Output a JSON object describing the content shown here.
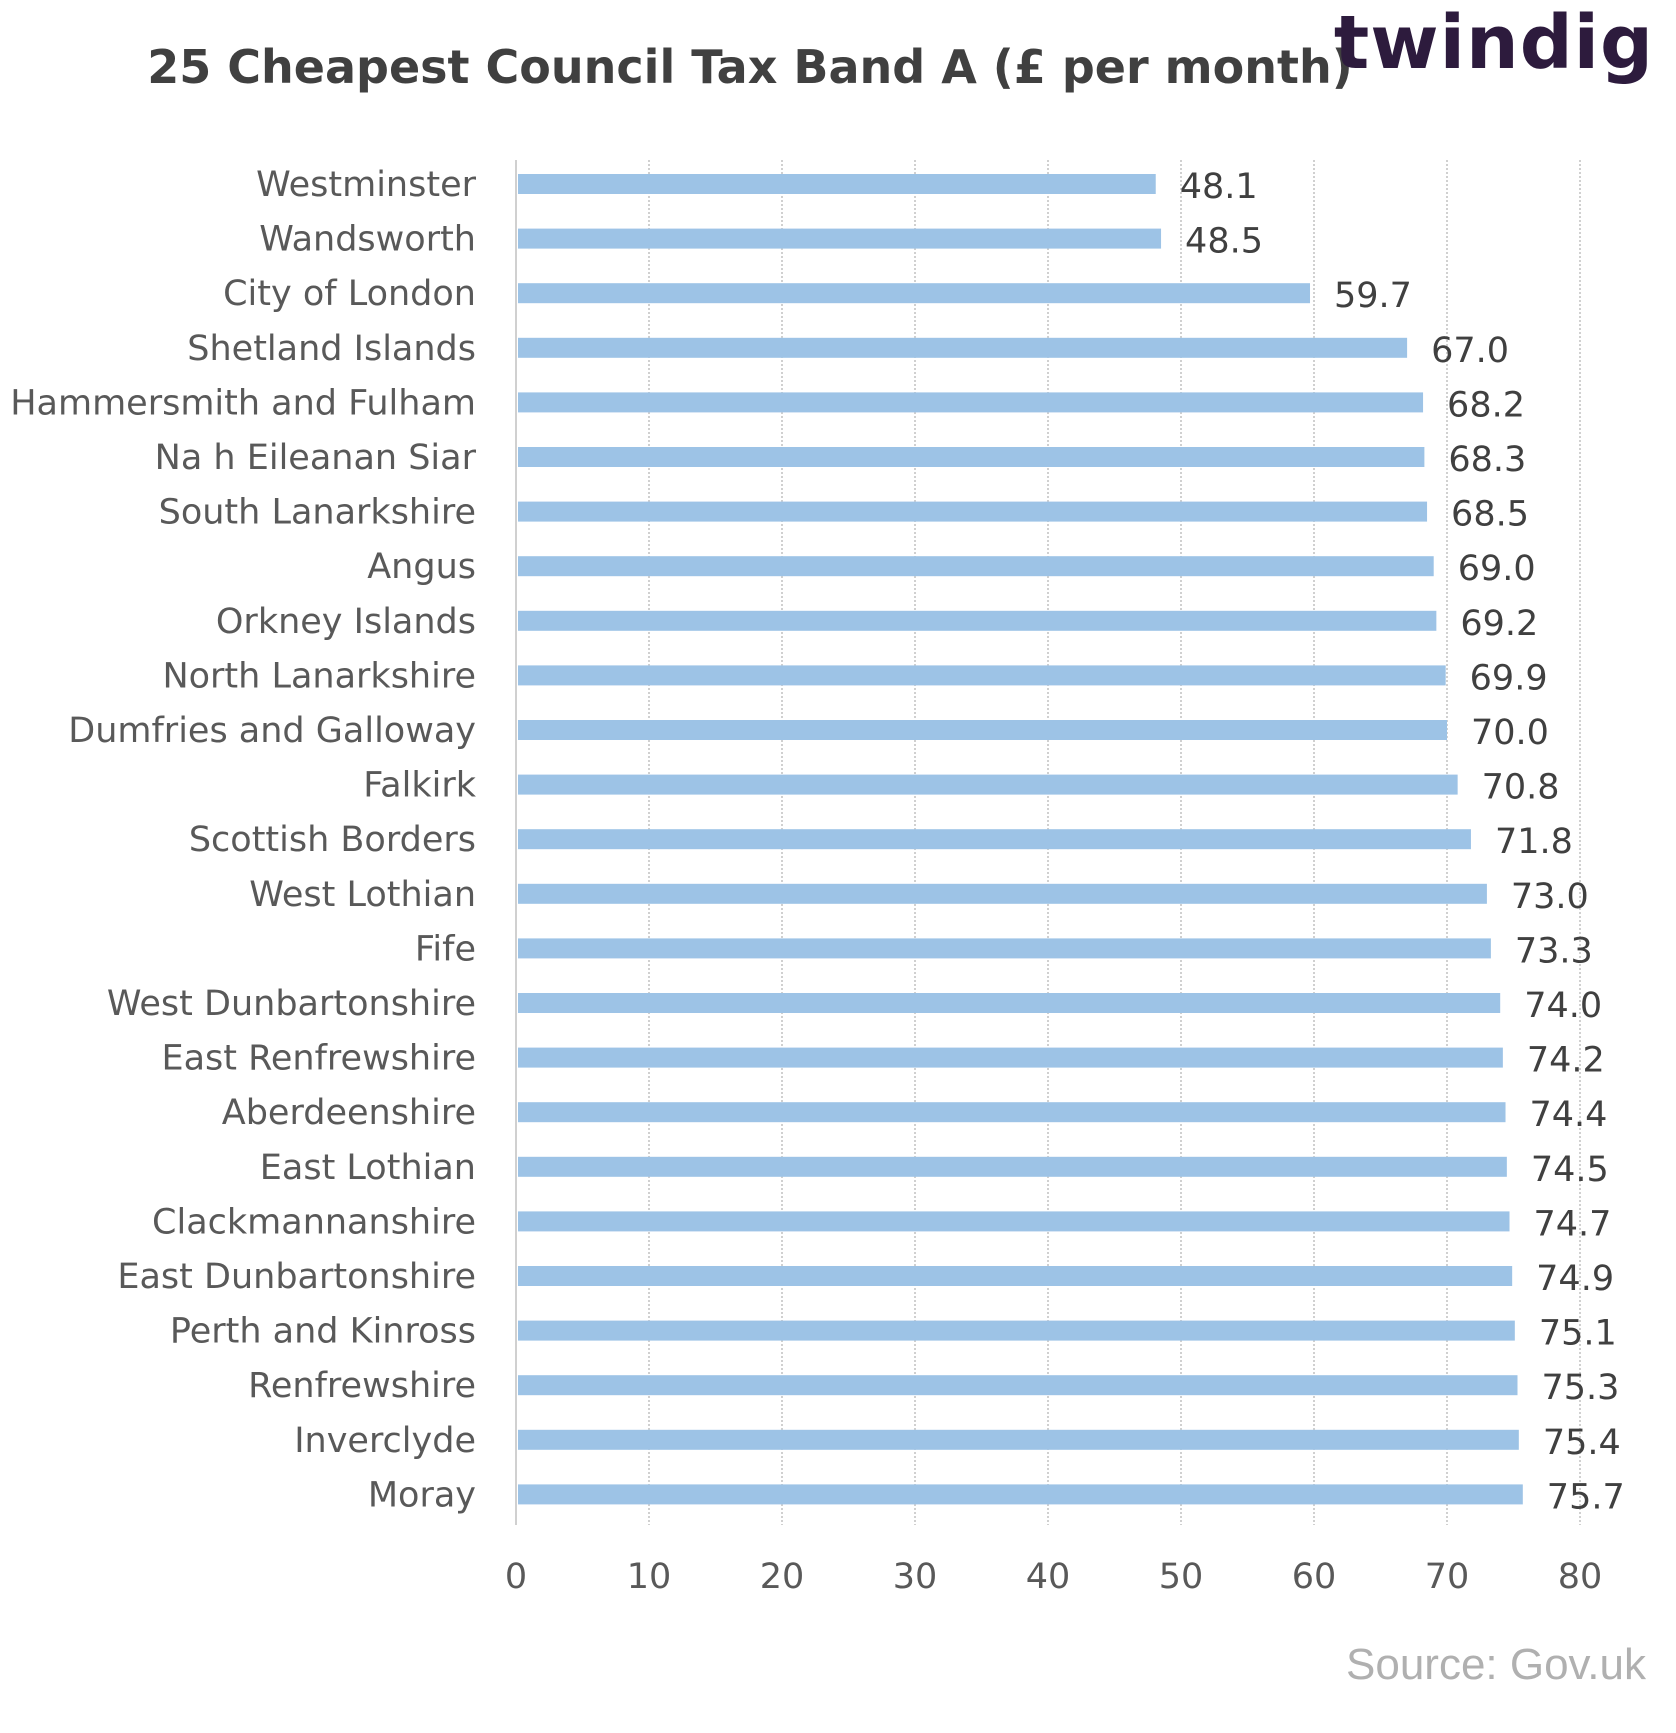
{
  "logo": {
    "text": "twindig",
    "primary_color": "#2d1b3d",
    "accent_color": "#f0a030"
  },
  "source": {
    "text": "Source: Gov.uk",
    "color": "#b0b0b0"
  },
  "colors": {
    "bar": "#9dc3e6",
    "text": "#404040",
    "grid": "#d0d0d0"
  },
  "chart_data": {
    "type": "bar",
    "orientation": "horizontal",
    "title": "25 Cheapest Council Tax Band A (£ per month)",
    "xlabel": "",
    "ylabel": "",
    "xlim": [
      0,
      80
    ],
    "xticks": [
      "0",
      "10",
      "20",
      "30",
      "40",
      "50",
      "60",
      "70",
      "80"
    ],
    "grid": "vertical dashed",
    "legend": "none",
    "categories": [
      "Westminster",
      "Wandsworth",
      "City of London",
      "Shetland  Islands",
      "Hammersmith and Fulham",
      "Na h Eileanan Siar",
      "South Lanarkshire",
      "Angus",
      "Orkney Islands",
      "North Lanarkshire",
      "Dumfries and Galloway",
      "Falkirk",
      "Scottish Borders",
      "West Lothian",
      "Fife",
      "West Dunbartonshire",
      "East Renfrewshire",
      "Aberdeenshire",
      "East Lothian",
      "Clackmannanshire",
      "East Dunbartonshire",
      "Perth and Kinross",
      "Renfrewshire",
      "Inverclyde",
      "Moray"
    ],
    "values": [
      48.1,
      48.5,
      59.7,
      67.0,
      68.2,
      68.3,
      68.5,
      69.0,
      69.2,
      69.9,
      70.0,
      70.8,
      71.8,
      73.0,
      73.3,
      74.0,
      74.2,
      74.4,
      74.5,
      74.7,
      74.9,
      75.1,
      75.3,
      75.4,
      75.7
    ],
    "data_labels": [
      "48.1",
      "48.5",
      "59.7",
      "67.0",
      "68.2",
      "68.3",
      "68.5",
      "69.0",
      "69.2",
      "69.9",
      "70.0",
      "70.8",
      "71.8",
      "73.0",
      "73.3",
      "74.0",
      "74.2",
      "74.4",
      "74.5",
      "74.7",
      "74.9",
      "75.1",
      "75.3",
      "75.4",
      "75.7"
    ]
  }
}
